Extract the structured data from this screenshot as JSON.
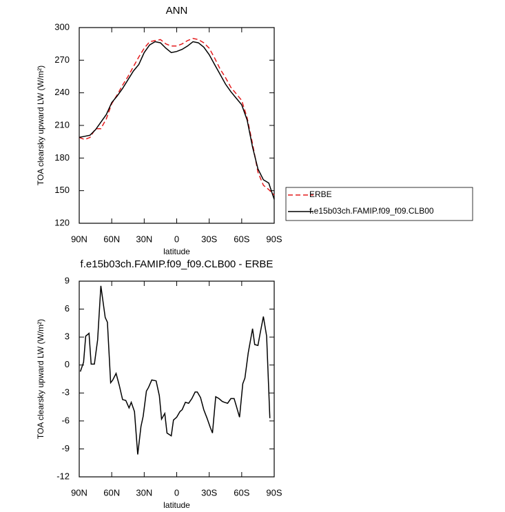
{
  "chart_data": [
    {
      "type": "line",
      "title": "ANN",
      "xlabel": "latitude",
      "ylabel": "TOA clearsky upward LW (W/m²)",
      "x": [
        90,
        85,
        80,
        75,
        70,
        65,
        60,
        55,
        50,
        45,
        40,
        35,
        30,
        25,
        20,
        15,
        10,
        5,
        0,
        -5,
        -10,
        -15,
        -20,
        -25,
        -30,
        -35,
        -40,
        -45,
        -50,
        -55,
        -60,
        -65,
        -70,
        -75,
        -80,
        -85,
        -90
      ],
      "series": [
        {
          "name": "ERBE",
          "color": "#e41a1c",
          "dash": "dashed",
          "values": [
            199,
            197,
            199,
            207,
            207,
            216,
            230,
            238,
            247,
            255,
            264,
            273,
            281,
            287,
            288,
            289,
            285,
            283,
            283,
            285,
            288,
            290,
            289,
            286,
            281,
            272,
            262,
            254,
            245,
            239,
            233,
            217,
            193,
            167,
            155,
            151,
            146
          ]
        },
        {
          "name": "f.e15b03ch.FAMIP.f09_f09.CLB00",
          "color": "#000000",
          "dash": "solid",
          "values": [
            199,
            200,
            201,
            206,
            213,
            220,
            231,
            237,
            244,
            252,
            260,
            266,
            277,
            284,
            287,
            286,
            281,
            277,
            278,
            280,
            283,
            287,
            286,
            282,
            275,
            266,
            257,
            248,
            241,
            235,
            229,
            215,
            190,
            170,
            160,
            157,
            142
          ]
        }
      ],
      "xlim": [
        90,
        -90
      ],
      "xticks": [
        {
          "value": 90,
          "label": "90N"
        },
        {
          "value": 60,
          "label": "60N"
        },
        {
          "value": 30,
          "label": "30N"
        },
        0,
        {
          "value": -30,
          "label": "30S"
        },
        {
          "value": -60,
          "label": "60S"
        },
        {
          "value": -90,
          "label": "90S"
        }
      ],
      "ylim": [
        120,
        300
      ],
      "yticks": [
        120,
        150,
        180,
        210,
        240,
        270,
        300
      ],
      "legend": "right"
    },
    {
      "type": "line",
      "title": "f.e15b03ch.FAMIP.f09_f09.CLB00 - ERBE",
      "xlabel": "latitude",
      "ylabel": "TOA clearsky upward LW (W/m²)",
      "x": [
        89,
        86,
        84,
        81,
        79,
        76,
        73,
        70,
        66,
        64,
        61,
        59,
        56,
        53,
        50,
        47,
        44,
        42,
        39,
        36,
        33,
        31,
        28,
        26,
        23,
        19,
        16,
        14,
        11,
        9,
        5,
        3,
        0,
        -3,
        -5,
        -8,
        -11,
        -14,
        -17,
        -19,
        -22,
        -25,
        -28,
        -31,
        -33,
        -36,
        -39,
        -42,
        -44,
        -47,
        -50,
        -53,
        -55,
        -58,
        -61,
        -63,
        -66,
        -70,
        -72,
        -75,
        -77,
        -80,
        -83,
        -86
      ],
      "values": [
        -0.7,
        0.3,
        3.1,
        3.4,
        0.1,
        0.1,
        2.7,
        8.5,
        5.1,
        4.6,
        -1.9,
        -1.6,
        -0.9,
        -2.2,
        -3.7,
        -3.8,
        -4.6,
        -4.0,
        -5.0,
        -9.6,
        -6.6,
        -5.5,
        -2.8,
        -2.4,
        -1.6,
        -1.7,
        -3.3,
        -5.8,
        -5.2,
        -7.3,
        -7.6,
        -5.9,
        -5.6,
        -5.0,
        -4.8,
        -4.0,
        -4.1,
        -3.6,
        -2.9,
        -2.9,
        -3.5,
        -4.8,
        -5.7,
        -6.7,
        -7.3,
        -3.4,
        -3.6,
        -3.9,
        -4.0,
        -4.1,
        -3.6,
        -3.6,
        -4.4,
        -5.6,
        -2.0,
        -1.4,
        1.3,
        3.9,
        2.2,
        2.1,
        3.4,
        5.2,
        3.1,
        -5.7
      ],
      "color": "#000000",
      "xlim": [
        90,
        -90
      ],
      "xticks": [
        {
          "value": 90,
          "label": "90N"
        },
        {
          "value": 60,
          "label": "60N"
        },
        {
          "value": 30,
          "label": "30N"
        },
        0,
        {
          "value": -30,
          "label": "30S"
        },
        {
          "value": -60,
          "label": "60S"
        },
        {
          "value": -90,
          "label": "90S"
        }
      ],
      "ylim": [
        -12,
        9
      ],
      "yticks": [
        -12,
        -9,
        -6,
        -3,
        0,
        3,
        6,
        9
      ]
    }
  ]
}
